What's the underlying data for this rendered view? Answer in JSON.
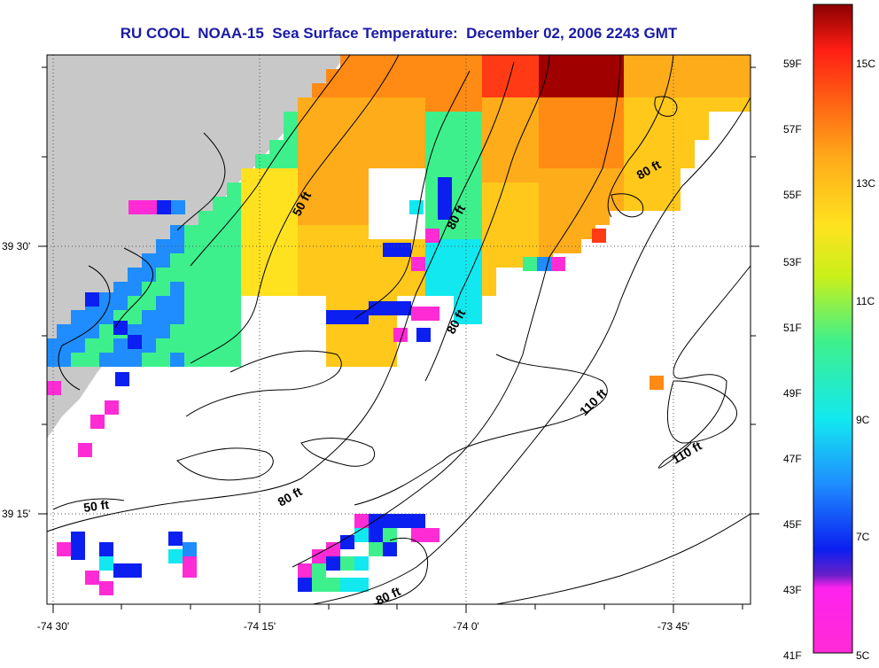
{
  "title": "RU COOL  NOAA-15  Sea Surface Temperature:  December 02, 2006 2243 GMT",
  "lon_ticks": [
    "-74 30'",
    "-74 15'",
    "-74 0'",
    "-73 45'"
  ],
  "lat_ticks": [
    "39 30'",
    "39 15'"
  ],
  "contour_labels": [
    "50 ft",
    "80 ft",
    "80 ft",
    "80 ft",
    "110 ft",
    "110 ft",
    "50 ft",
    "80 ft",
    "80 ft"
  ],
  "colorbar": {
    "fahrenheit": [
      "59F",
      "57F",
      "55F",
      "53F",
      "51F",
      "49F",
      "47F",
      "45F",
      "43F",
      "41F"
    ],
    "celsius": [
      "15C",
      "13C",
      "11C",
      "9C",
      "7C",
      "5C"
    ],
    "colors": [
      "#ff2bd5",
      "#6a1fc8",
      "#0a1ff0",
      "#1f8dff",
      "#12e8f0",
      "#3ef08c",
      "#c9f01a",
      "#ffe21f",
      "#ffac1a",
      "#ff6a14",
      "#ff1e14",
      "#8a0000"
    ]
  },
  "colors": {
    "land": "#c8c8c8",
    "ocean": "#ffffff",
    "title": "#1a1aa6",
    "contour": "#000000"
  }
}
